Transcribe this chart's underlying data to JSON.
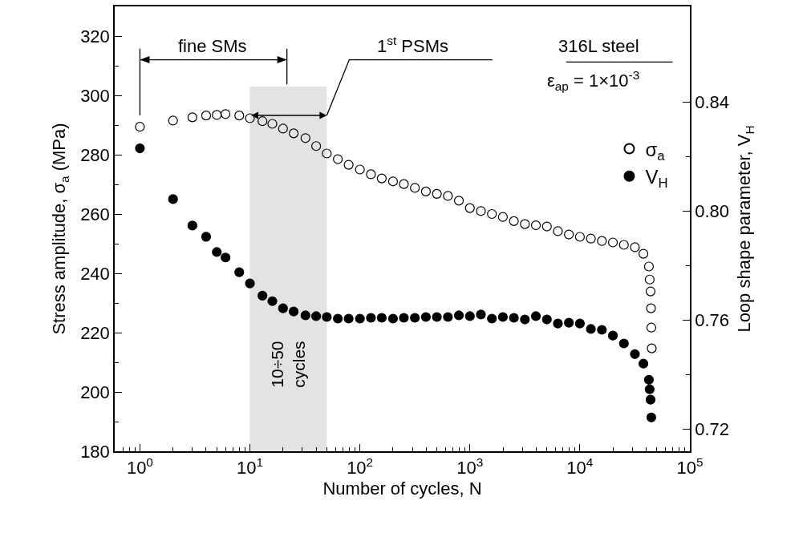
{
  "chart_data": {
    "type": "scatter",
    "xlabel": "Number of cycles, N",
    "ylabel": "Stress amplitude, σ$_{a}$ (MPa)",
    "y2label": "Loop shape parameter, V$_{H}$",
    "log": "x",
    "marker": "circle",
    "legend": "top right",
    "grid": false,
    "xlim": [
      0.59,
      100000
    ],
    "xticks": [
      {
        "value": 1,
        "label": "10$^{0}$"
      },
      {
        "value": 10,
        "label": "10$^{1}$"
      },
      {
        "value": 100,
        "label": "10$^{2}$"
      },
      {
        "value": 1000,
        "label": "10$^{3}$"
      },
      {
        "value": 10000,
        "label": "10$^{4}$"
      },
      {
        "value": 100000,
        "label": "10$^{5}$"
      }
    ],
    "ylim": [
      180,
      330
    ],
    "yticks": [
      180,
      200,
      220,
      240,
      260,
      280,
      300,
      320
    ],
    "y2lim": [
      0.712,
      0.875
    ],
    "y2ticks": [
      {
        "value": 0.72,
        "label": "0.72"
      },
      {
        "value": 0.76,
        "label": "0.76"
      },
      {
        "value": 0.8,
        "label": "0.80"
      },
      {
        "value": 0.84,
        "label": "0.84"
      }
    ],
    "series": [
      {
        "name": "σ$_{a}$",
        "color": "#000000",
        "x": [
          1,
          2,
          3,
          4,
          5,
          6,
          8,
          10,
          13,
          16,
          20,
          25,
          32,
          40,
          50,
          63,
          79,
          100,
          126,
          158,
          200,
          251,
          316,
          398,
          501,
          631,
          794,
          1000,
          1259,
          1585,
          1995,
          2512,
          3162,
          3981,
          5012,
          6310,
          7943,
          10000,
          12589,
          15849,
          19953,
          25119,
          31623,
          37800,
          42400,
          43100,
          43900,
          44300,
          44600,
          45000
        ],
        "values": [
          289.4,
          291.5,
          292.6,
          293.2,
          293.4,
          293.7,
          293.2,
          292.3,
          291.3,
          290.4,
          288.8,
          287.2,
          285.6,
          282.9,
          280.4,
          278.5,
          276.6,
          275.0,
          273.4,
          272.0,
          271.0,
          270.1,
          268.8,
          267.6,
          266.8,
          266.1,
          264.5,
          262.0,
          261.0,
          260.0,
          259.0,
          257.6,
          256.6,
          256.2,
          255.8,
          254.2,
          253.1,
          252.3,
          251.7,
          250.9,
          250.4,
          249.6,
          248.8,
          246.6,
          242.3,
          237.9,
          233.9,
          228.2,
          221.7,
          214.7
        ]
      },
      {
        "name": "V$_{H}$",
        "color": "#000000",
        "axis": "y2",
        "x": [
          1,
          2,
          3,
          4,
          5,
          6,
          8,
          10,
          13,
          16,
          20,
          25,
          32,
          40,
          50,
          63,
          79,
          100,
          126,
          158,
          200,
          251,
          316,
          398,
          501,
          631,
          794,
          1000,
          1259,
          1585,
          1995,
          2512,
          3162,
          3981,
          5012,
          6310,
          7943,
          10000,
          12589,
          15849,
          19953,
          25119,
          31623,
          37800,
          42400,
          43100,
          43900,
          44600
        ],
        "values": [
          0.823,
          0.8044,
          0.7947,
          0.7906,
          0.785,
          0.783,
          0.7776,
          0.7735,
          0.769,
          0.767,
          0.7644,
          0.7632,
          0.7618,
          0.7615,
          0.7612,
          0.7606,
          0.7606,
          0.7606,
          0.7609,
          0.7609,
          0.7606,
          0.7609,
          0.7609,
          0.7612,
          0.7612,
          0.7612,
          0.7618,
          0.7615,
          0.7621,
          0.7606,
          0.7612,
          0.7609,
          0.7603,
          0.7615,
          0.7603,
          0.7588,
          0.7591,
          0.7588,
          0.7568,
          0.7565,
          0.7544,
          0.7515,
          0.7476,
          0.7441,
          0.7382,
          0.7347,
          0.7309,
          0.7244
        ]
      }
    ],
    "bands": [
      {
        "axis": "x",
        "from": 10,
        "to": 50,
        "label": "10÷50 cycles",
        "color": "#e3e3e3"
      }
    ],
    "annotations": [
      "fine SMs",
      "1$^{st}$ PSMs",
      "316L steel",
      "ε$_{ap}$ = 1×10$^{-3}$"
    ]
  }
}
